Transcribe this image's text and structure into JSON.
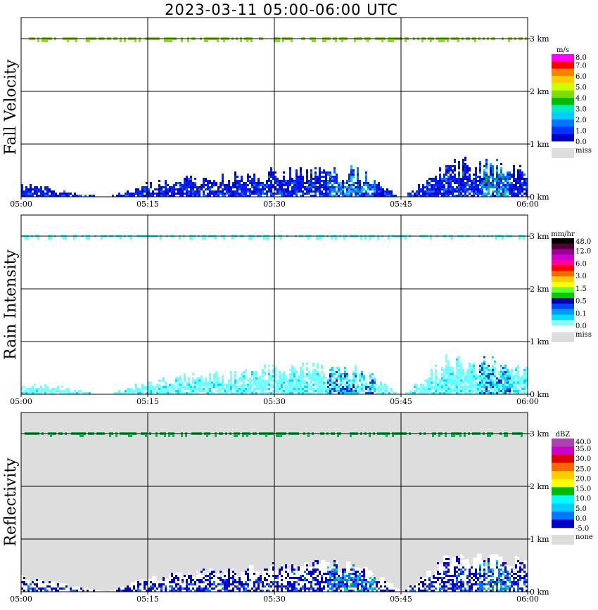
{
  "title": "2023-03-11   05:00-06:00 UTC",
  "chart_data": [
    {
      "type": "heatmap",
      "ylabel": "Fall Velocity",
      "x_ticks": [
        "05:00",
        "05:15",
        "05:30",
        "05:45",
        "06:00"
      ],
      "y_ticks": [
        "0 km",
        "1 km",
        "2 km",
        "3 km"
      ],
      "ylim_km": [
        0,
        3.4
      ],
      "xlim": [
        "05:00",
        "06:00"
      ],
      "grid": true,
      "background": "#ffffff",
      "colorbar": {
        "unit": "m/s",
        "labels": [
          "8.0",
          "7.0",
          "6.0",
          "5.0",
          "4.0",
          "3.0",
          "2.0",
          "1.0",
          "0.0"
        ],
        "colors": [
          "#ff00ff",
          "#ff0000",
          "#ff7f00",
          "#ffcc00",
          "#ccff00",
          "#7fdd00",
          "#00bb00",
          "#00eebb",
          "#00ccff",
          "#0077ff",
          "#0033ff",
          "#0000cc"
        ],
        "miss_label": "miss",
        "miss_color": "#dddddd"
      },
      "echo_top_band_km": 3.0,
      "echo_band_color": "#88dd22",
      "echo_profile": {
        "times_min": [
          0,
          5,
          10,
          15,
          20,
          25,
          30,
          35,
          40,
          45,
          50,
          55,
          60
        ],
        "max_height_km": [
          0.3,
          0.15,
          0.0,
          0.3,
          0.4,
          0.45,
          0.55,
          0.6,
          0.55,
          0.0,
          0.7,
          0.7,
          0.6
        ],
        "colors": [
          "#0000cc",
          "#0022ff",
          "#0077ff",
          "#00ccff",
          "#00bb00",
          "#ff00ff"
        ]
      }
    },
    {
      "type": "heatmap",
      "ylabel": "Rain Intensity",
      "x_ticks": [
        "05:00",
        "05:15",
        "05:30",
        "05:45",
        "06:00"
      ],
      "y_ticks": [
        "0 km",
        "1 km",
        "2 km",
        "3 km"
      ],
      "ylim_km": [
        0,
        3.4
      ],
      "xlim": [
        "05:00",
        "06:00"
      ],
      "grid": true,
      "background": "#ffffff",
      "colorbar": {
        "unit": "mm/hr",
        "labels": [
          "48.0",
          "12.0",
          "6.0",
          "3.0",
          "1.5",
          "0.5",
          "0.1",
          "0.0"
        ],
        "colors": [
          "#000000",
          "#550033",
          "#990099",
          "#cc00cc",
          "#ff0099",
          "#ff0000",
          "#ff6600",
          "#ffcc00",
          "#ffff00",
          "#66ff33",
          "#00cc00",
          "#0000aa",
          "#0044ff",
          "#0099ff",
          "#00ddff",
          "#88ffff"
        ],
        "miss_label": "miss",
        "miss_color": "#dddddd"
      },
      "echo_top_band_km": 3.0,
      "echo_band_color": "#66ffff",
      "echo_profile": {
        "times_min": [
          0,
          5,
          10,
          15,
          20,
          25,
          30,
          35,
          40,
          45,
          50,
          55,
          60
        ],
        "max_height_km": [
          0.3,
          0.15,
          0.0,
          0.3,
          0.4,
          0.45,
          0.55,
          0.6,
          0.55,
          0.0,
          0.7,
          0.7,
          0.6
        ],
        "colors": [
          "#88ffff",
          "#66ffff",
          "#00ddff",
          "#0044ff",
          "#0000aa"
        ]
      }
    },
    {
      "type": "heatmap",
      "ylabel": "Reflectivity",
      "x_ticks": [
        "05:00",
        "05:15",
        "05:30",
        "05:45",
        "06:00"
      ],
      "y_ticks": [
        "0 km",
        "1 km",
        "2 km",
        "3 km"
      ],
      "ylim_km": [
        0,
        3.4
      ],
      "xlim": [
        "05:00",
        "06:00"
      ],
      "grid": true,
      "background": "#dddddd",
      "colorbar": {
        "unit": "dBZ",
        "labels": [
          "40.0",
          "35.0",
          "30.0",
          "25.0",
          "20.0",
          "15.0",
          "10.0",
          "5.0",
          "0.0",
          "-5.0"
        ],
        "colors": [
          "#aa44aa",
          "#cc00cc",
          "#dd0000",
          "#ff6600",
          "#ffcc00",
          "#ffff00",
          "#00bb00",
          "#00ffff",
          "#00ccff",
          "#0077ff",
          "#0000cc"
        ],
        "miss_label": "none",
        "miss_color": "#dddddd"
      },
      "echo_top_band_km": 3.0,
      "echo_band_color": "#00bb44",
      "echo_profile": {
        "times_min": [
          0,
          5,
          10,
          15,
          20,
          25,
          30,
          35,
          40,
          45,
          50,
          55,
          60
        ],
        "max_height_km": [
          0.3,
          0.15,
          0.0,
          0.3,
          0.4,
          0.45,
          0.55,
          0.6,
          0.55,
          0.0,
          0.7,
          0.7,
          0.6
        ],
        "colors": [
          "#ffffff",
          "#0000cc",
          "#0077ff",
          "#00ccff",
          "#00bb00"
        ]
      }
    }
  ]
}
